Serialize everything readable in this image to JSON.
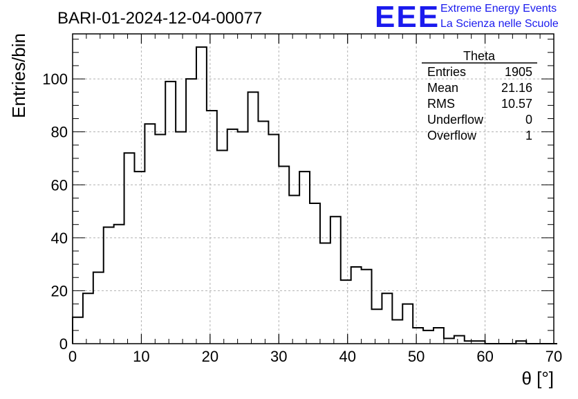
{
  "chart_data": {
    "type": "histogram",
    "title": "BARI-01-2024-12-04-00077",
    "xlabel": "θ [°]",
    "ylabel": "Entries/bin",
    "xlim": [
      0,
      70
    ],
    "ylim": [
      0,
      117
    ],
    "xticks": [
      0,
      10,
      20,
      30,
      40,
      50,
      60,
      70
    ],
    "xtick_labels": [
      "0",
      "10",
      "20",
      "30",
      "40",
      "50",
      "60",
      "70"
    ],
    "yticks": [
      0,
      20,
      40,
      60,
      80,
      100
    ],
    "ytick_labels": [
      "0",
      "20",
      "40",
      "60",
      "80",
      "100"
    ],
    "grid": true,
    "grid_style": "dashed",
    "bin_width": 1.5,
    "bin_edges_start": 0,
    "values": [
      10,
      19,
      27,
      44,
      45,
      72,
      65,
      83,
      79,
      99,
      80,
      100,
      112,
      88,
      73,
      81,
      80,
      95,
      84,
      79,
      67,
      56,
      65,
      53,
      38,
      48,
      24,
      29,
      28,
      13,
      19,
      9,
      15,
      6,
      5,
      6,
      2,
      3,
      1,
      1,
      0,
      0,
      0,
      1,
      0,
      0,
      0
    ],
    "stats_box": {
      "title": "Theta",
      "placement": "top-right",
      "rows": [
        {
          "label": "Entries",
          "value": "1905"
        },
        {
          "label": "Mean",
          "value": "21.16"
        },
        {
          "label": "RMS",
          "value": "10.57"
        },
        {
          "label": "Underflow",
          "value": "0"
        },
        {
          "label": "Overflow",
          "value": "1"
        }
      ]
    }
  },
  "logo": {
    "text": "EEE",
    "line1": "Extreme Energy Events",
    "line2": "La Scienza nelle Scuole",
    "color": "#1a1aee"
  },
  "colors": {
    "line": "#000000",
    "grid": "#b0b0b0"
  }
}
